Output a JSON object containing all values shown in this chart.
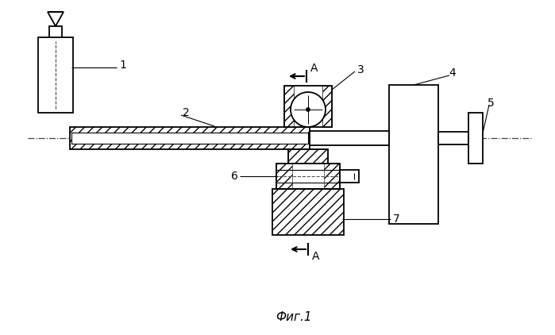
{
  "title": "Фиг.1",
  "background_color": "#ffffff",
  "line_color": "#000000",
  "fig_width": 6.99,
  "fig_height": 4.22,
  "dpi": 100
}
